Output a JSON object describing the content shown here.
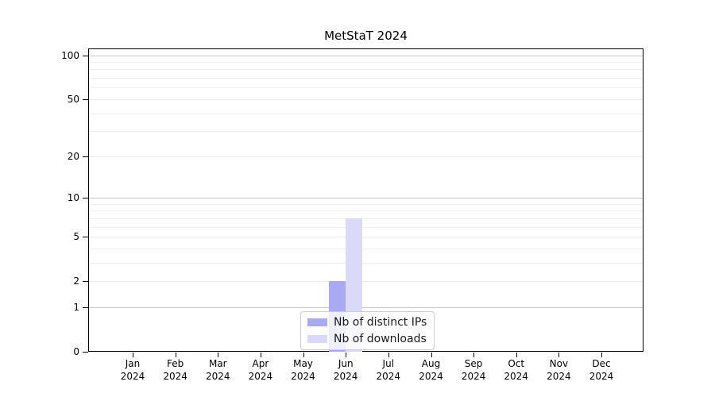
{
  "title": "MetStaT 2024",
  "y_axis": {
    "tick_labels": [
      "0",
      "1",
      "2",
      "5",
      "10",
      "20",
      "50",
      "100"
    ]
  },
  "x_axis": {
    "months": [
      "Jan",
      "Feb",
      "Mar",
      "Apr",
      "May",
      "Jun",
      "Jul",
      "Aug",
      "Sep",
      "Oct",
      "Nov",
      "Dec"
    ],
    "year": "2024"
  },
  "legend": {
    "entries": [
      {
        "label": "Nb of distinct IPs",
        "color": "#a9a9f4"
      },
      {
        "label": "Nb of downloads",
        "color": "#dadaf8"
      }
    ]
  },
  "colors": {
    "bar_distinct_ips": "#a9a9f4",
    "bar_downloads": "#dadaf8",
    "gridline_major": "#c6c6c6",
    "gridline_minor": "#ededed",
    "axis": "#000000"
  },
  "chart_data": {
    "type": "bar",
    "title": "MetStaT 2024",
    "categories": [
      "Jan 2024",
      "Feb 2024",
      "Mar 2024",
      "Apr 2024",
      "May 2024",
      "Jun 2024",
      "Jul 2024",
      "Aug 2024",
      "Sep 2024",
      "Oct 2024",
      "Nov 2024",
      "Dec 2024"
    ],
    "series": [
      {
        "name": "Nb of distinct IPs",
        "color": "#a9a9f4",
        "values": [
          0,
          0,
          0,
          0,
          0,
          2,
          0,
          0,
          0,
          0,
          0,
          0
        ]
      },
      {
        "name": "Nb of downloads",
        "color": "#dadaf8",
        "values": [
          0,
          0,
          0,
          0,
          0,
          7,
          0,
          0,
          0,
          0,
          0,
          0
        ]
      }
    ],
    "y_scale": "log(1+y)",
    "y_ticks": [
      0,
      1,
      2,
      5,
      10,
      20,
      50,
      100
    ],
    "y_gridlines_major": [
      1,
      10,
      100
    ],
    "y_gridlines_minor": [
      2,
      3,
      4,
      5,
      6,
      7,
      8,
      9,
      20,
      30,
      40,
      50,
      60,
      70,
      80,
      90
    ],
    "ylim": [
      0,
      110
    ],
    "xlabel": "",
    "ylabel": "",
    "grid": true,
    "legend_position": "bottom-center"
  }
}
